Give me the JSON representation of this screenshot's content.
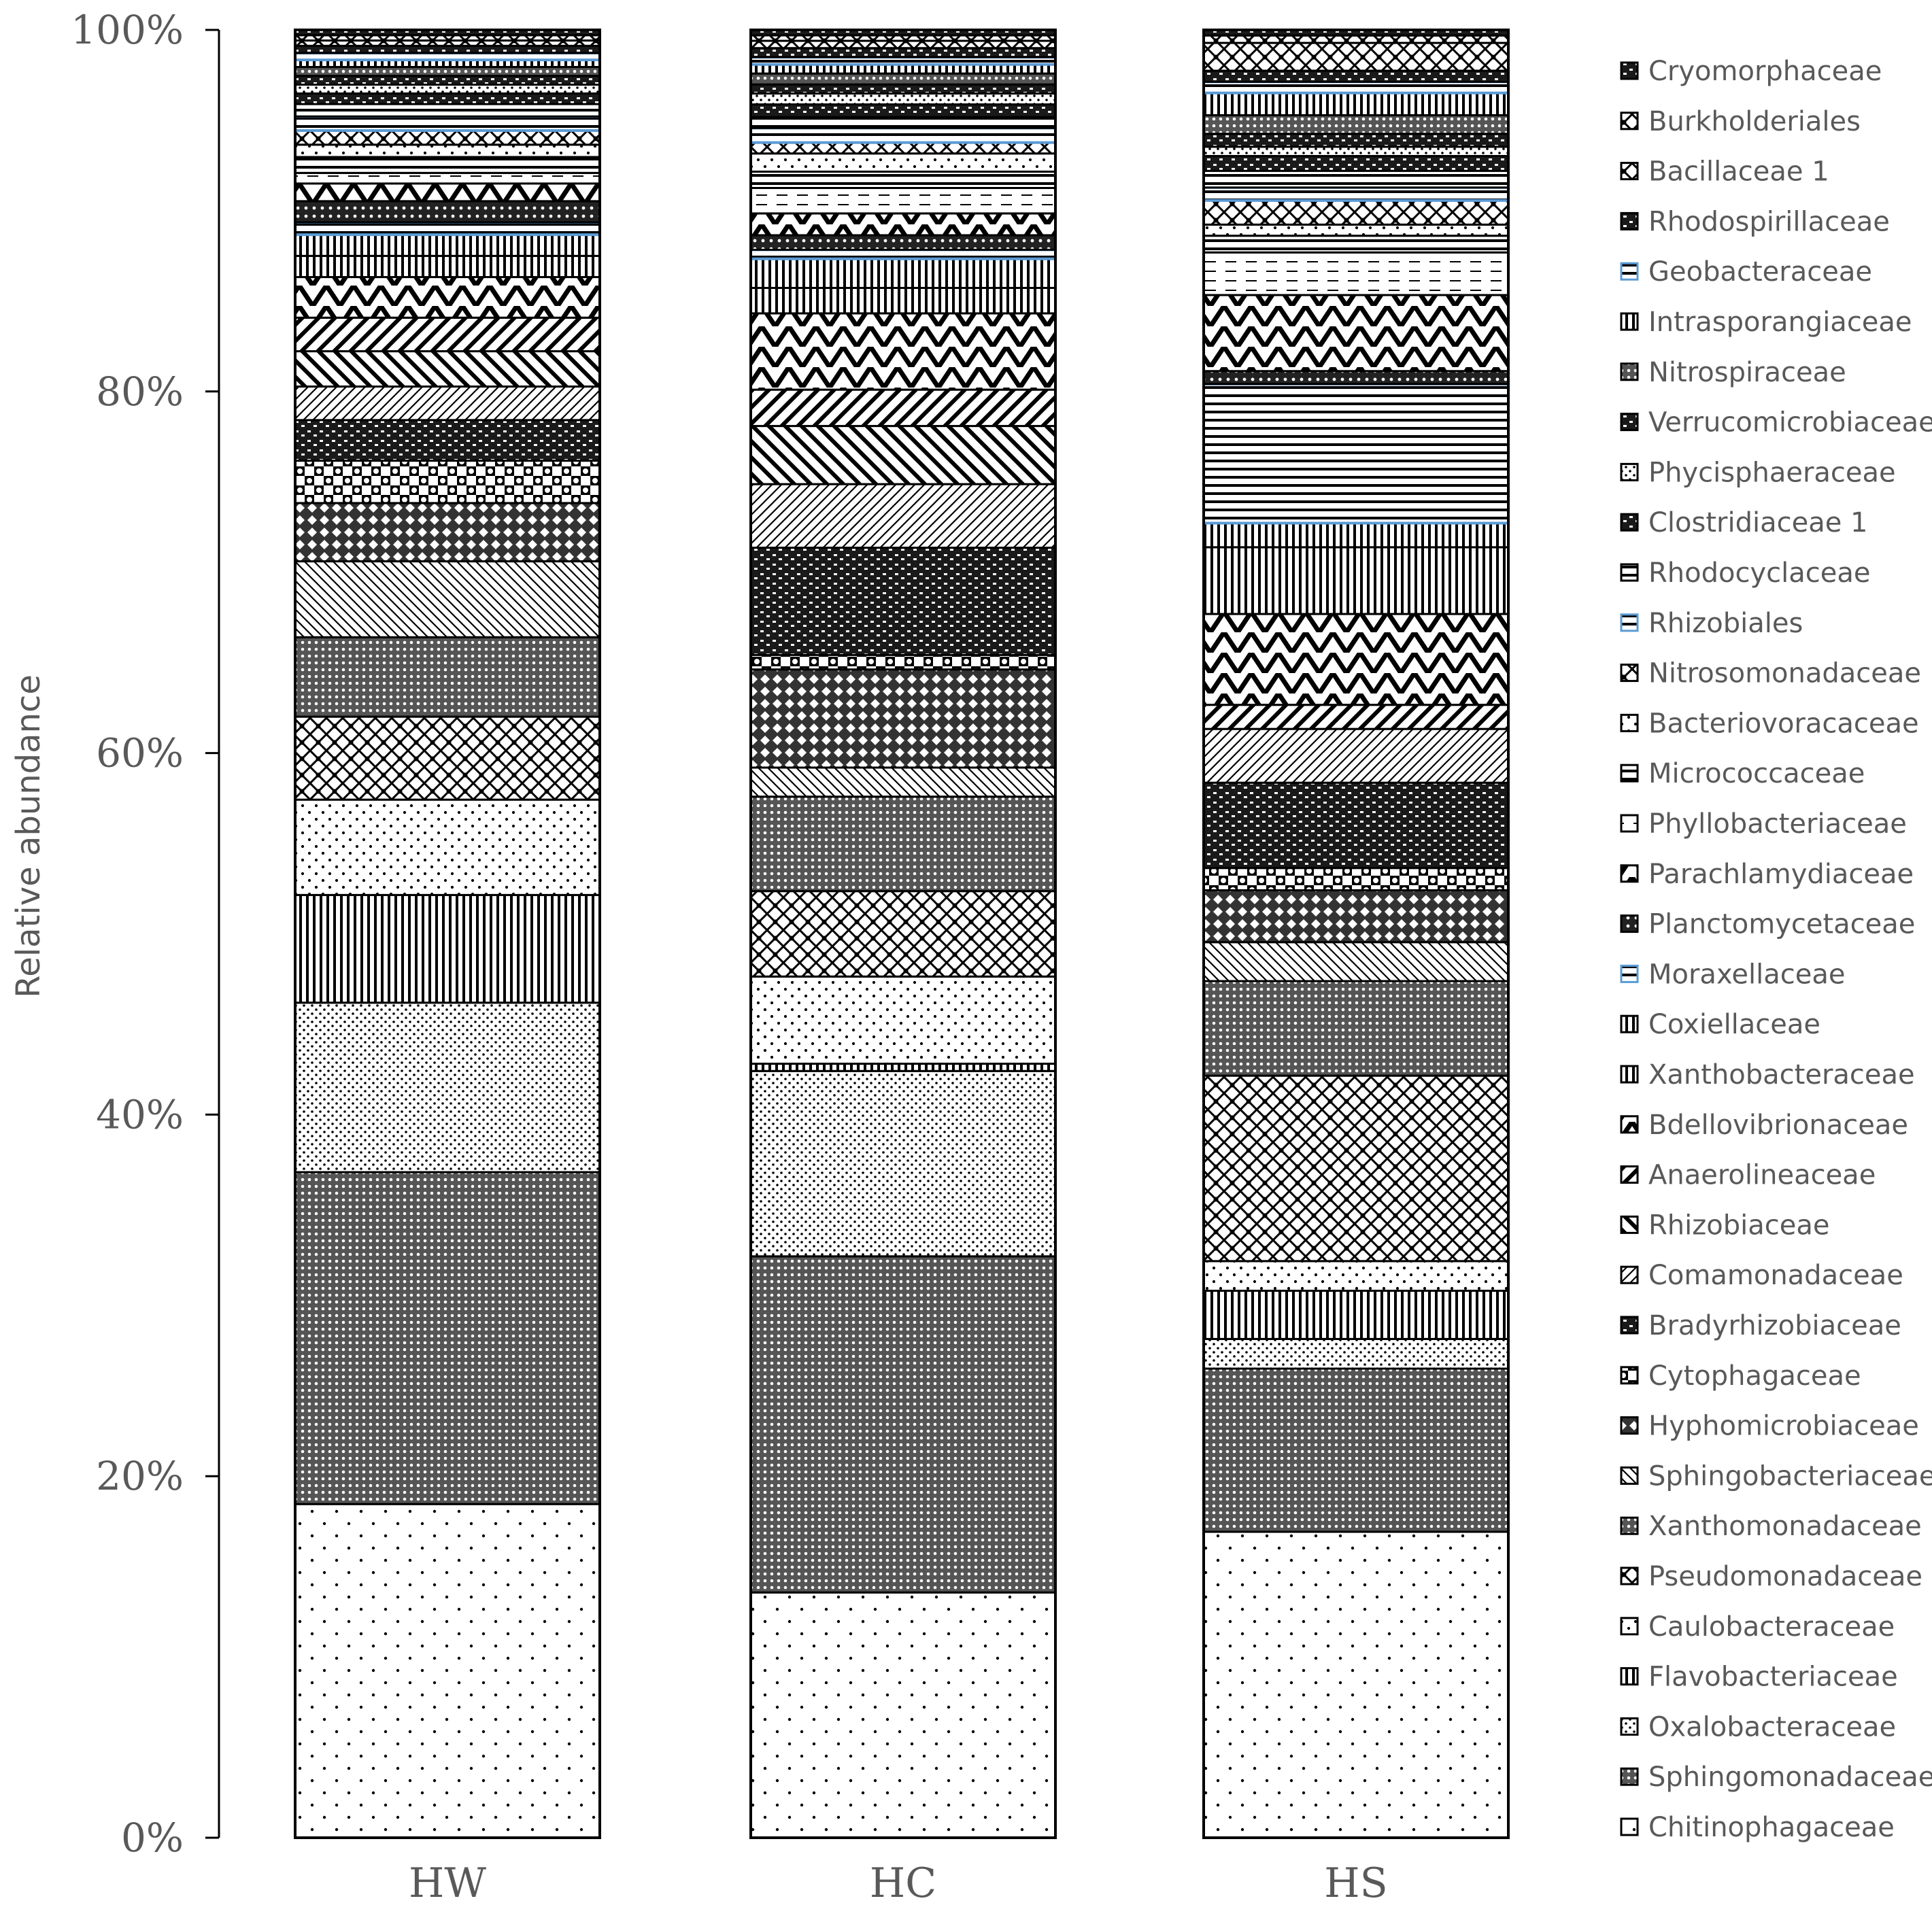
{
  "chart_data": {
    "type": "bar",
    "stacked": true,
    "percent_stacked": true,
    "title": "",
    "xlabel": "",
    "ylabel": "Relative abundance",
    "ylim": [
      0,
      100
    ],
    "y_ticks": [
      "0%",
      "20%",
      "40%",
      "60%",
      "80%",
      "100%"
    ],
    "categories": [
      "HW",
      "HC",
      "HS"
    ],
    "legend_position": "right",
    "series": [
      {
        "name": "Chitinophagaceae",
        "pattern": "sparse-dots",
        "values": [
          18.9,
          13.5,
          16.5
        ]
      },
      {
        "name": "Sphingomonadaceae",
        "pattern": "dense-grid",
        "values": [
          18.8,
          18.5,
          8.8
        ]
      },
      {
        "name": "Oxalobacteraceae",
        "pattern": "dense-dots",
        "values": [
          9.6,
          10.2,
          1.6
        ]
      },
      {
        "name": "Flavobacteriaceae",
        "pattern": "vertical-stripes",
        "values": [
          6.1,
          0.4,
          2.6
        ]
      },
      {
        "name": "Caulobacteraceae",
        "pattern": "medium-dots",
        "values": [
          5.4,
          4.8,
          1.6
        ]
      },
      {
        "name": "Pseudomonadaceae",
        "pattern": "diamond-check",
        "values": [
          4.7,
          4.7,
          10.0
        ]
      },
      {
        "name": "Xanthomonadaceae",
        "pattern": "dense-grid",
        "values": [
          4.5,
          5.2,
          5.1
        ]
      },
      {
        "name": "Sphingobacteriaceae",
        "pattern": "diag-down-thin",
        "values": [
          4.3,
          1.6,
          2.1
        ]
      },
      {
        "name": "Hyphomicrobiaceae",
        "pattern": "diamond-dark",
        "values": [
          3.3,
          5.4,
          2.8
        ]
      },
      {
        "name": "Cytophagaceae",
        "pattern": "checker-large",
        "values": [
          2.4,
          0.8,
          1.2
        ]
      },
      {
        "name": "Bradyrhizobiaceae",
        "pattern": "dark-brick",
        "values": [
          2.3,
          5.9,
          4.6
        ]
      },
      {
        "name": "Comamonadaceae",
        "pattern": "diag-up-thin",
        "values": [
          1.9,
          3.5,
          2.9
        ]
      },
      {
        "name": "Rhizobiaceae",
        "pattern": "diag-down-wide",
        "values": [
          2.0,
          3.2,
          0.0
        ]
      },
      {
        "name": "Anaerolineaceae",
        "pattern": "diag-up-wide",
        "values": [
          1.9,
          2.0,
          1.3
        ]
      },
      {
        "name": "Bdellovibrionaceae",
        "pattern": "zigzag",
        "values": [
          2.3,
          4.2,
          4.9
        ]
      },
      {
        "name": "Xanthobacteraceae",
        "pattern": "vertical-stripes",
        "values": [
          1.2,
          1.4,
          3.6
        ]
      },
      {
        "name": "Coxiellaceae",
        "pattern": "vertical-stripes",
        "values": [
          1.2,
          1.6,
          1.3
        ]
      },
      {
        "name": "Moraxellaceae",
        "pattern": "horizontal-dash",
        "values": [
          0.7,
          0.5,
          7.5
        ]
      },
      {
        "name": "Planctomycetaceae",
        "pattern": "dark-dots",
        "values": [
          1.2,
          0.8,
          0.7
        ]
      },
      {
        "name": "Parachlamydiaceae",
        "pattern": "zigzag",
        "values": [
          1.0,
          1.2,
          4.1
        ]
      },
      {
        "name": "Phyllobacteriaceae",
        "pattern": "light-dash",
        "values": [
          0.6,
          1.4,
          2.3
        ]
      },
      {
        "name": "Micrococcaceae",
        "pattern": "horizontal-dash",
        "values": [
          0.9,
          0.9,
          0.9
        ]
      },
      {
        "name": "Bacteriovoracaceae",
        "pattern": "medium-dots",
        "values": [
          0.7,
          1.0,
          0.6
        ]
      },
      {
        "name": "Nitrosomonadaceae",
        "pattern": "diamond-check",
        "values": [
          0.8,
          0.6,
          1.3
        ]
      },
      {
        "name": "Rhizobiales",
        "pattern": "horizontal-dash",
        "values": [
          0.8,
          0.8,
          0.7
        ]
      },
      {
        "name": "Rhodocyclaceae",
        "pattern": "horizontal-dash",
        "values": [
          0.7,
          0.6,
          0.9
        ]
      },
      {
        "name": "Clostridiaceae 1",
        "pattern": "dark-brick",
        "values": [
          0.6,
          0.7,
          0.8
        ]
      },
      {
        "name": "Phycisphaeraceae",
        "pattern": "dense-dots",
        "values": [
          0.5,
          0.6,
          0.5
        ]
      },
      {
        "name": "Verrucomicrobiaceae",
        "pattern": "dark-brick",
        "values": [
          0.5,
          0.5,
          0.7
        ]
      },
      {
        "name": "Nitrospiraceae",
        "pattern": "dense-grid",
        "values": [
          0.5,
          0.6,
          1.0
        ]
      },
      {
        "name": "Intrasporangiaceae",
        "pattern": "vertical-stripes",
        "values": [
          0.4,
          0.5,
          1.2
        ]
      },
      {
        "name": "Geobacteraceae",
        "pattern": "horizontal-dash",
        "values": [
          0.4,
          0.4,
          0.6
        ]
      },
      {
        "name": "Rhodospirillaceae",
        "pattern": "dark-brick",
        "values": [
          0.4,
          0.5,
          0.6
        ]
      },
      {
        "name": "Bacillaceae 1",
        "pattern": "diamond-check",
        "values": [
          0.3,
          0.4,
          1.5
        ]
      },
      {
        "name": "Burkholderiales",
        "pattern": "diamond-check",
        "values": [
          0.3,
          0.3,
          0.4
        ]
      },
      {
        "name": "Cryomorphaceae",
        "pattern": "dark-brick",
        "values": [
          0.3,
          0.3,
          0.3
        ]
      }
    ],
    "blue_line_series": [
      "Rhizobiales",
      "Geobacteraceae",
      "Moraxellaceae"
    ],
    "blue_color": "#5b9bd5",
    "outline_color": "#000000"
  }
}
